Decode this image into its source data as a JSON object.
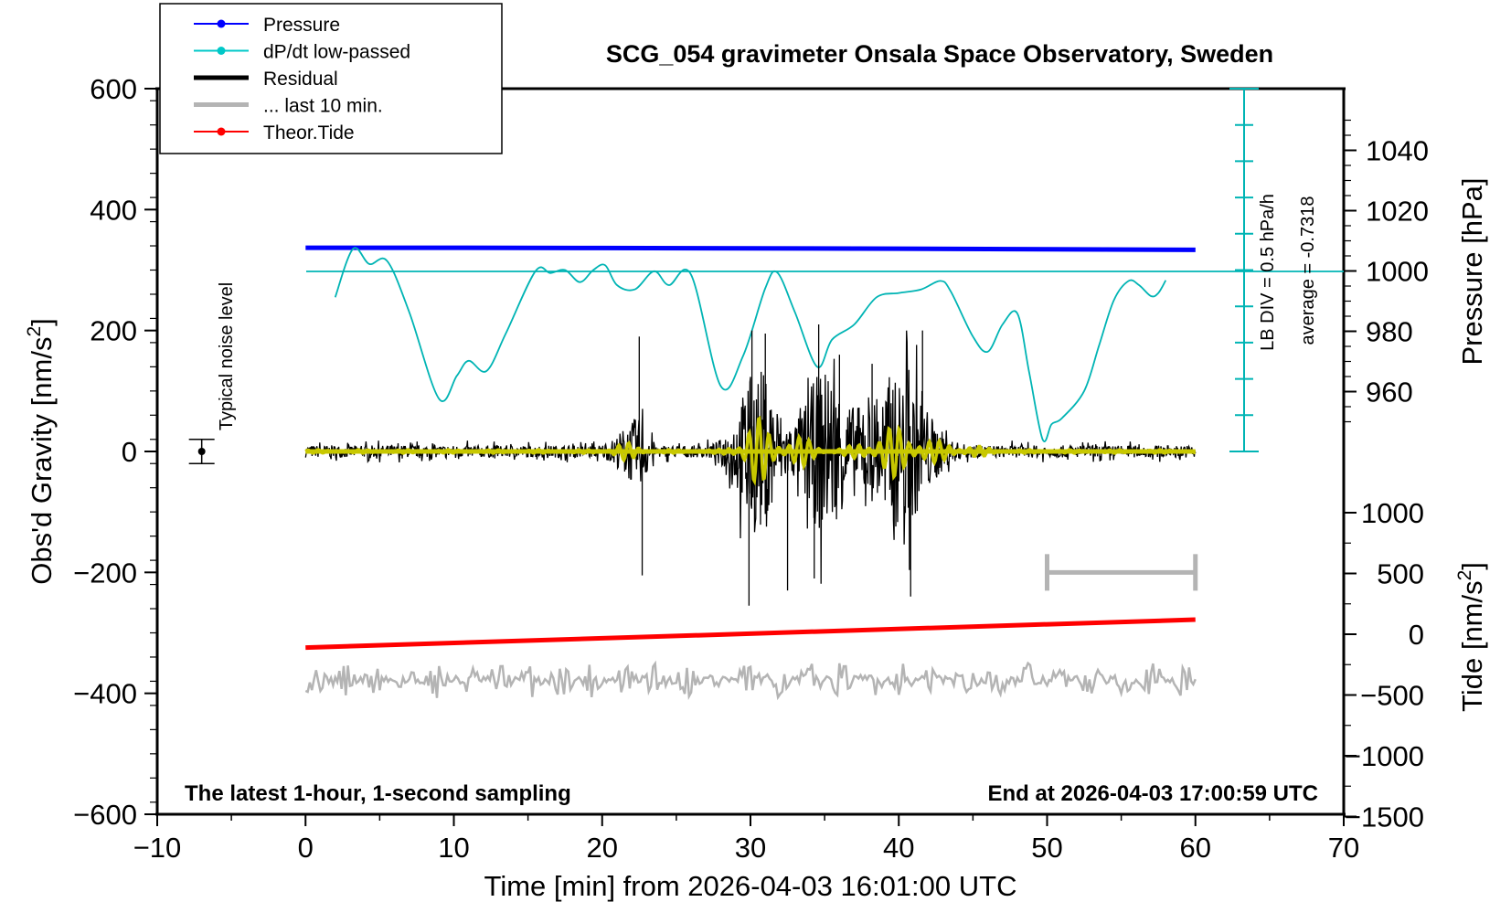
{
  "chart_data": {
    "type": "line",
    "title": "SCG_054 gravimeter Onsala Space Observatory, Sweden",
    "xlabel": "Time [min] from 2026-04-03 16:01:00 UTC",
    "ylabel_left": "Obs'd Gravity [nm/s",
    "ylabel_left_sup": "2",
    "ylabel_left_end": "]",
    "ylabel_right_pressure": "Pressure [hPa]",
    "ylabel_right_tide": "Tide [nm/s",
    "ylabel_right_tide_sup": "2",
    "ylabel_right_tide_end": "]",
    "xlim": [
      -10,
      70
    ],
    "ylim": [
      -600,
      600
    ],
    "x_ticks": [
      "−10",
      "0",
      "10",
      "20",
      "30",
      "40",
      "50",
      "60",
      "70"
    ],
    "y_ticks": [
      "−600",
      "−400",
      "−200",
      "0",
      "200",
      "400",
      "600"
    ],
    "pressure_ticks": [
      "960",
      "980",
      "1000",
      "1020",
      "1040"
    ],
    "tide_ticks": [
      "−1500",
      "−1000",
      "−500",
      "0",
      "500",
      "1000"
    ],
    "legend": [
      {
        "label": "Pressure",
        "color": "#0000ff",
        "marker": true
      },
      {
        "label": "dP/dt low-passed",
        "color": "#00c8c8",
        "marker": true
      },
      {
        "label": "Residual",
        "color": "#000000",
        "marker": false
      },
      {
        "label": "... last 10 min.",
        "color": "#b4b4b4",
        "marker": false
      },
      {
        "label": "Theor.Tide",
        "color": "#ff0000",
        "marker": true
      }
    ],
    "legend_position": "top-left",
    "annotations": {
      "noise_label": "Typical noise level",
      "lb_div": "LB DIV = 0.5 hPa/h",
      "average": "average = -0.7318",
      "bottom_left": "The latest 1-hour, 1-second sampling",
      "bottom_right": "End at 2026-04-03 17:00:59 UTC"
    },
    "noise_level": {
      "x": -7,
      "y": 0,
      "err": 20
    },
    "last10_bar": {
      "x_start": 50,
      "x_end": 60,
      "y": -200
    },
    "series": {
      "pressure_hPa": {
        "x": [
          0,
          10,
          20,
          30,
          40,
          50,
          60
        ],
        "y": [
          1007.7,
          1007.7,
          1007.6,
          1007.5,
          1007.4,
          1007.2,
          1007.0
        ]
      },
      "dpdt_lowpassed": {
        "x": [
          2.0,
          3.2,
          4.3,
          5.5,
          7.0,
          9.0,
          10.2,
          11.0,
          12.2,
          13.5,
          15.5,
          16.5,
          17.5,
          18.5,
          19.4,
          20.2,
          21.0,
          22.2,
          23.5,
          24.5,
          26.0,
          28.0,
          29.5,
          31.0,
          31.8,
          33.0,
          34.5,
          35.5,
          37.0,
          38.5,
          40.0,
          41.5,
          42.8,
          43.5,
          45.0,
          46.0,
          47.0,
          48.0,
          48.8,
          49.7,
          50.3,
          51.0,
          52.5,
          53.5,
          54.5,
          55.5,
          56.2,
          57.0,
          57.5,
          58.0
        ],
        "y": [
          255,
          335,
          310,
          315,
          230,
          87,
          125,
          150,
          133,
          195,
          298,
          295,
          300,
          280,
          300,
          308,
          275,
          268,
          298,
          275,
          292,
          108,
          158,
          270,
          296,
          230,
          140,
          185,
          210,
          255,
          262,
          268,
          282,
          265,
          190,
          165,
          210,
          228,
          130,
          20,
          45,
          55,
          100,
          175,
          250,
          282,
          275,
          257,
          262,
          283
        ]
      },
      "residual": {
        "x_range": [
          0,
          60
        ],
        "baseline": 0,
        "sampling": "1 s",
        "peak_events_min": [
          22.7,
          29.8,
          34.7,
          41.0
        ],
        "y_range": [
          -255,
          200
        ]
      },
      "last_10_min": {
        "x_range": [
          0,
          60
        ],
        "mean": -378,
        "amplitude": 30
      },
      "theor_tide": {
        "x": [
          0,
          60
        ],
        "y_tide": [
          -110,
          120
        ]
      }
    }
  }
}
